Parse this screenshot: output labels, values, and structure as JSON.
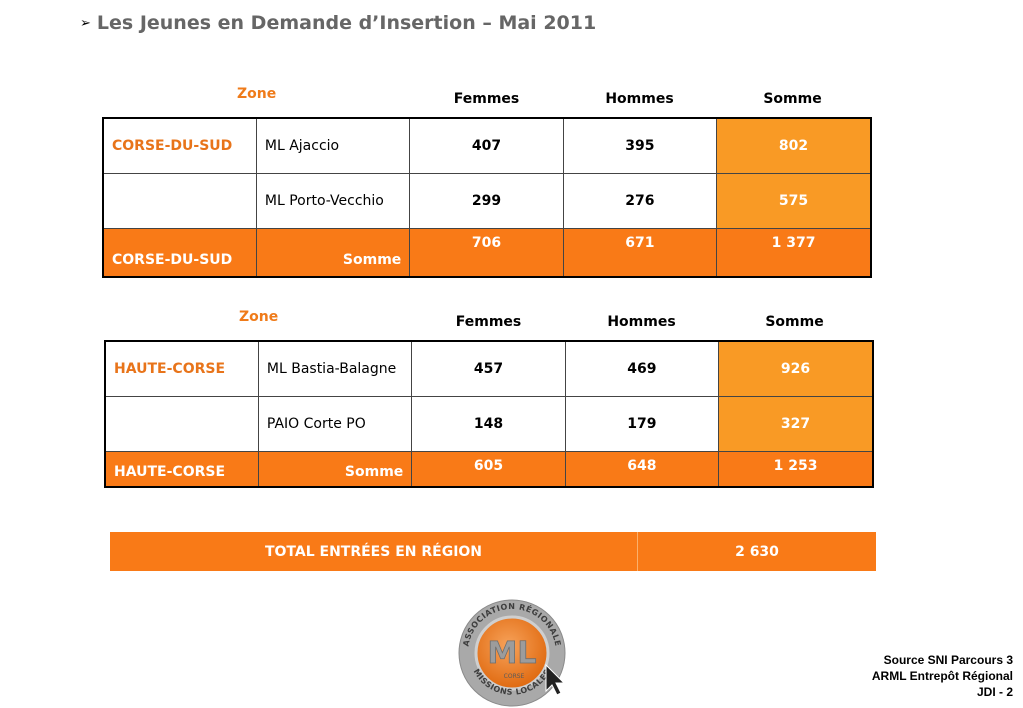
{
  "title": "Les Jeunes en Demande d’Insertion – Mai 2011",
  "title_arrow": "➢",
  "headers": {
    "zone": "Zone",
    "femmes": "Femmes",
    "hommes": "Hommes",
    "somme": "Somme"
  },
  "tables": [
    {
      "zone": "CORSE-DU-SUD",
      "rows": [
        {
          "zone": "CORSE-DU-SUD",
          "location": "ML Ajaccio",
          "femmes": "407",
          "hommes": "395",
          "somme": "802"
        },
        {
          "zone": "",
          "location": "ML Porto-Vecchio",
          "femmes": "299",
          "hommes": "276",
          "somme": "575"
        }
      ],
      "total": {
        "zone": "CORSE-DU-SUD",
        "label": "Somme",
        "femmes": "706",
        "hommes": "671",
        "somme": "1 377"
      }
    },
    {
      "zone": "HAUTE-CORSE",
      "rows": [
        {
          "zone": "HAUTE-CORSE",
          "location": "ML Bastia-Balagne",
          "femmes": "457",
          "hommes": "469",
          "somme": "926"
        },
        {
          "zone": "",
          "location": "PAIO Corte PO",
          "femmes": "148",
          "hommes": "179",
          "somme": "327"
        }
      ],
      "total": {
        "zone": "HAUTE-CORSE",
        "label": "Somme",
        "femmes": "605",
        "hommes": "648",
        "somme": "1 253"
      }
    }
  ],
  "grand_total": {
    "label": "TOTAL ENTRÉES EN RÉGION",
    "value": "2 630"
  },
  "logo": {
    "top_text": "ASSOCIATION RÉGIONALE",
    "bottom_text": "MISSIONS LOCALES",
    "mark": "ML",
    "sub": "CORSE"
  },
  "source": {
    "line1": "Source SNI Parcours 3",
    "line2": "ARML Entrepôt Régional",
    "line3": "JDI - 2"
  },
  "colors": {
    "accent": "#f97a17",
    "accent_light": "#f99a25",
    "zone_text": "#e8741a",
    "title": "#666666"
  }
}
